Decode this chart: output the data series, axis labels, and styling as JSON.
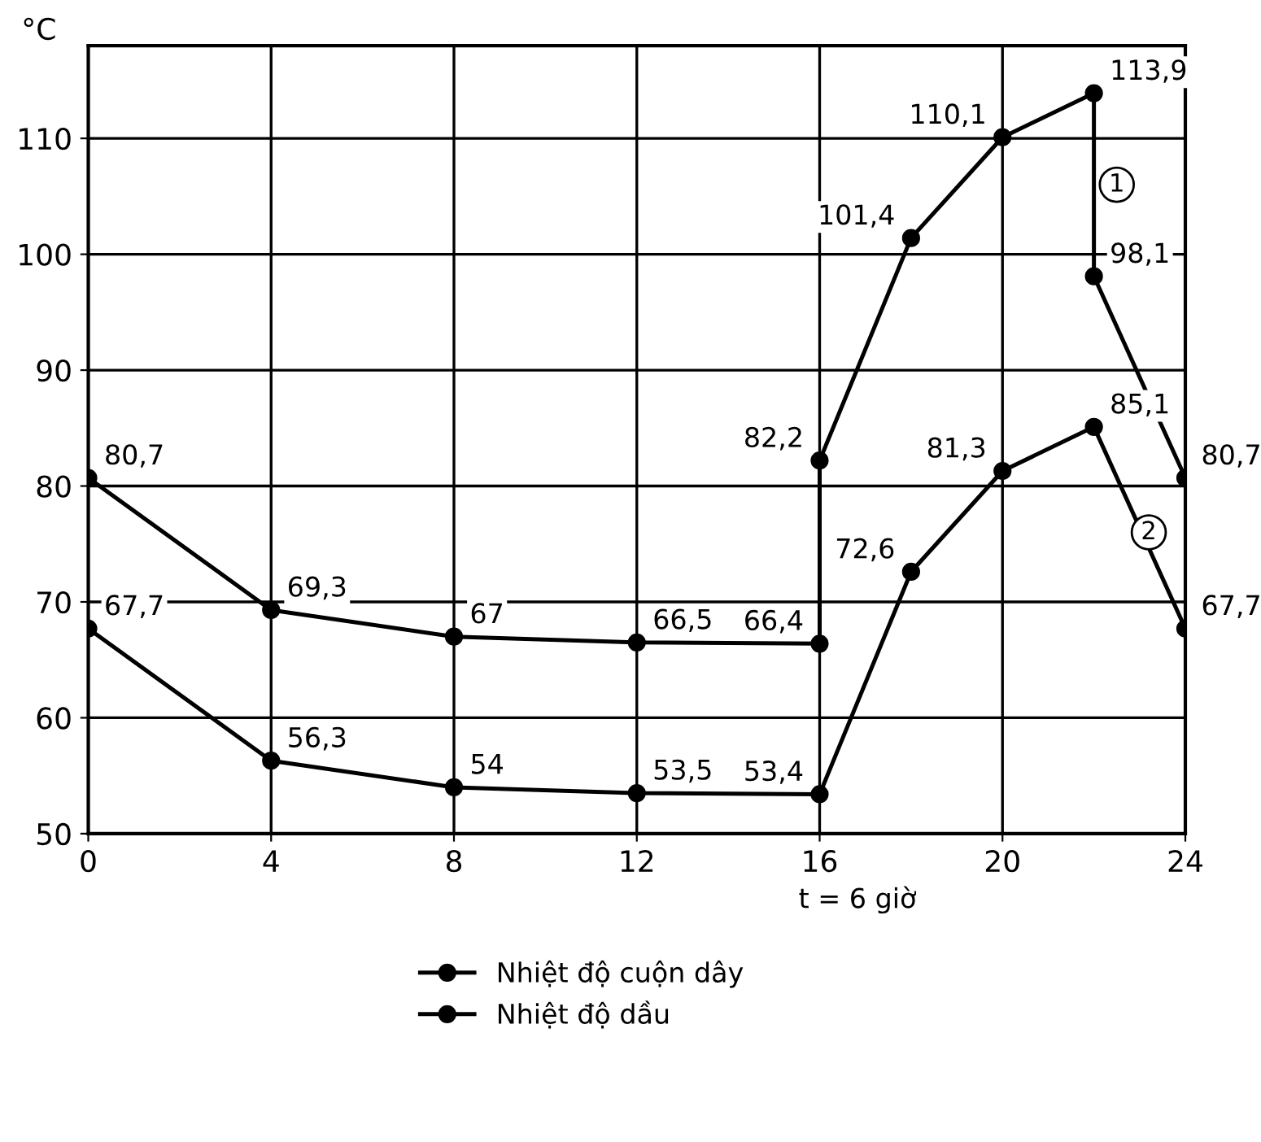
{
  "chart_data": {
    "type": "line",
    "ylabel": "°C",
    "series": [
      {
        "name": "Nhiệt độ cuộn dây",
        "color": "#000000",
        "x": [
          0,
          4,
          8,
          12,
          16,
          16,
          18,
          20,
          22,
          22,
          24
        ],
        "values": [
          80.7,
          69.3,
          67,
          66.5,
          66.4,
          82.2,
          101.4,
          110.1,
          113.9,
          98.1,
          80.7
        ],
        "value_labels": [
          "80,7",
          "69,3",
          "67",
          "66,5",
          "66,4",
          "82,2",
          "101,4",
          "110,1",
          "113,9",
          "98,1",
          "80,7"
        ]
      },
      {
        "name": "Nhiệt độ dầu",
        "color": "#000000",
        "x": [
          0,
          4,
          8,
          12,
          16,
          18,
          20,
          22,
          24
        ],
        "values": [
          67.7,
          56.3,
          54,
          53.5,
          53.4,
          72.6,
          81.3,
          85.1,
          67.7
        ],
        "value_labels": [
          "67,7",
          "56,3",
          "54",
          "53,5",
          "53,4",
          "72,6",
          "81,3",
          "85,1",
          "67,7"
        ]
      }
    ],
    "xlim": [
      0,
      24
    ],
    "xticks": [
      0,
      4,
      8,
      12,
      16,
      20,
      24
    ],
    "ylim": [
      50,
      118
    ],
    "yticks": [
      50,
      60,
      70,
      80,
      90,
      100,
      110
    ],
    "grid": true,
    "marker": "circle",
    "line_style": "solid",
    "legend": "bottom",
    "annotations": [
      {
        "text": "1",
        "x": 22.5,
        "y": 106
      },
      {
        "text": "2",
        "x": 23.2,
        "y": 76
      },
      "t = 6 giờ"
    ]
  }
}
